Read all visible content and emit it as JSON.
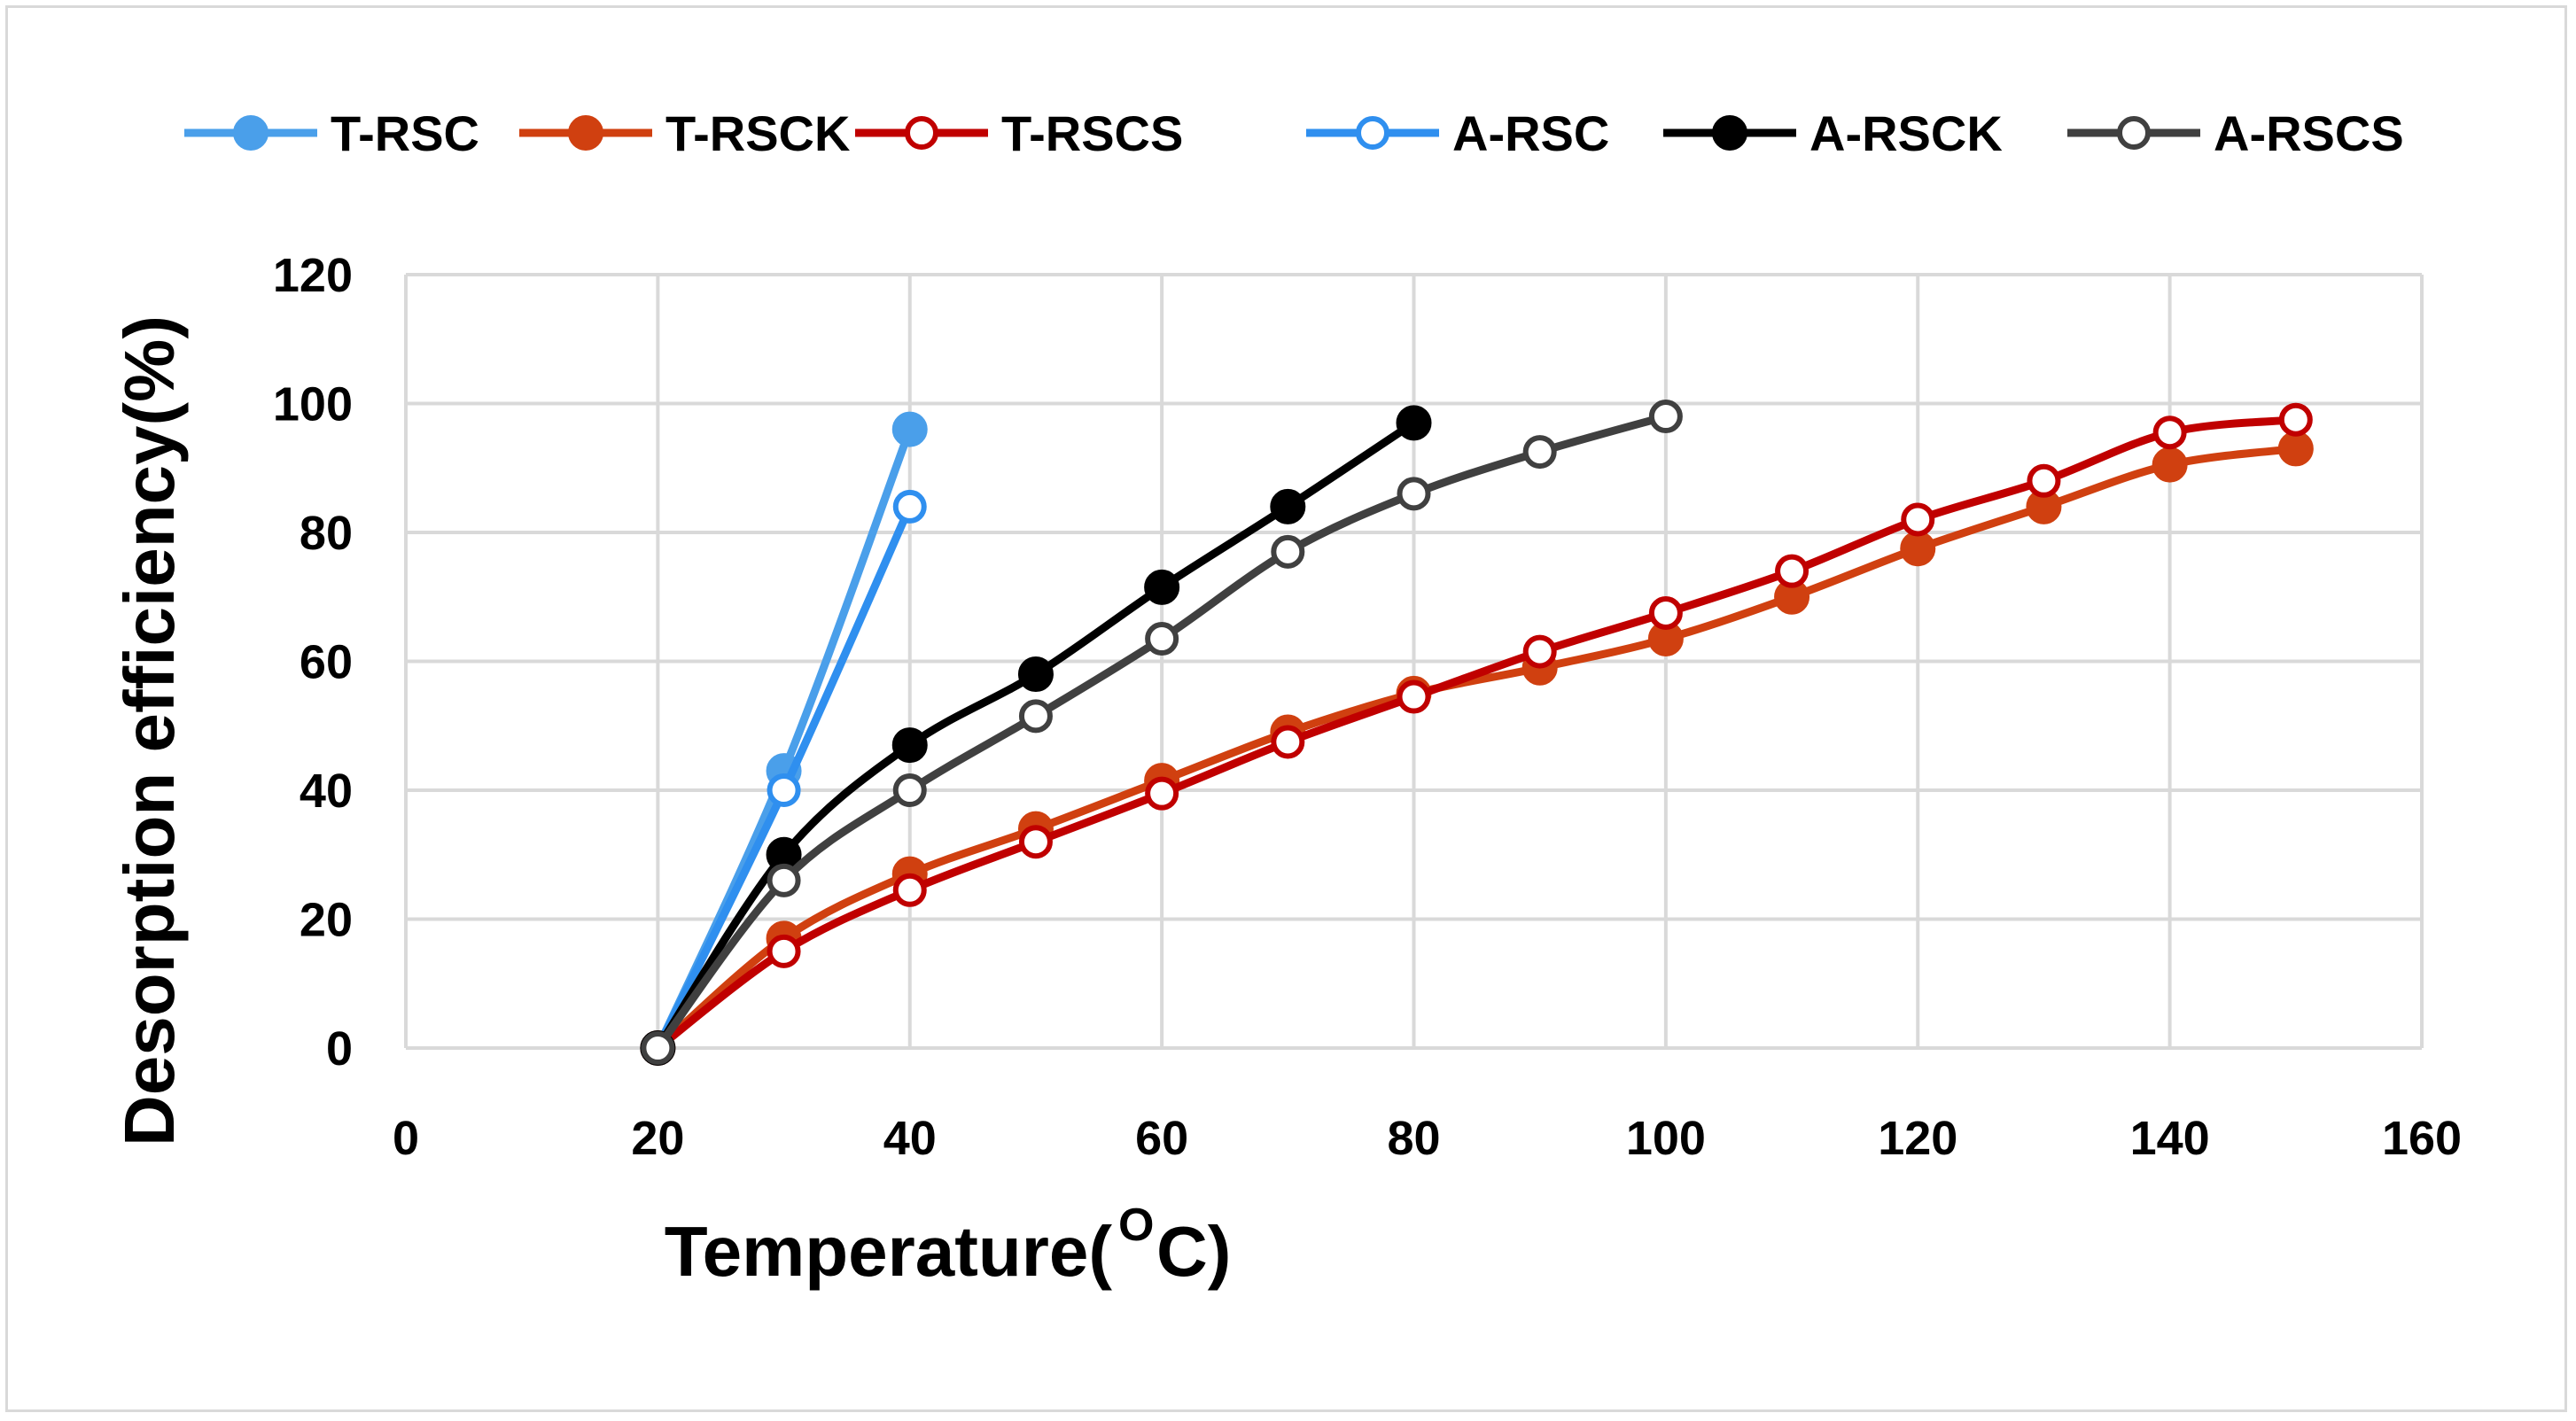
{
  "chart_data": {
    "type": "line",
    "title": "",
    "xlabel": "Temperature(",
    "xlabel_superscript": "O",
    "xlabel_suffix": "C)",
    "ylabel": "Desorption efficiency(%)",
    "xlim": [
      0,
      160
    ],
    "ylim": [
      0,
      120
    ],
    "xticks": [
      0,
      20,
      40,
      60,
      80,
      100,
      120,
      140,
      160
    ],
    "yticks": [
      0,
      20,
      40,
      60,
      80,
      100,
      120
    ],
    "grid": true,
    "legend_position": "top",
    "series": [
      {
        "name": "T-RSC",
        "color": "#4a9fea",
        "marker": "filled",
        "x": [
          20,
          30,
          40
        ],
        "y": [
          0,
          43,
          96
        ]
      },
      {
        "name": "T-RSCK",
        "color": "#d04010",
        "marker": "filled",
        "x": [
          20,
          30,
          40,
          50,
          60,
          70,
          80,
          90,
          100,
          110,
          120,
          130,
          140,
          150
        ],
        "y": [
          0,
          17,
          27,
          34,
          41.5,
          49,
          55,
          59,
          63.5,
          70,
          77.5,
          84,
          90.5,
          93
        ]
      },
      {
        "name": "T-RSCS",
        "color": "#c00000",
        "marker": "open",
        "x": [
          20,
          30,
          40,
          50,
          60,
          70,
          80,
          90,
          100,
          110,
          120,
          130,
          140,
          150
        ],
        "y": [
          0,
          15,
          24.5,
          32,
          39.5,
          47.5,
          54.5,
          61.5,
          67.5,
          74,
          82,
          88,
          95.5,
          97.5
        ]
      },
      {
        "name": "A-RSC",
        "color": "#2f8fef",
        "marker": "open",
        "x": [
          20,
          30,
          40
        ],
        "y": [
          0,
          40,
          84
        ]
      },
      {
        "name": "A-RSCK",
        "color": "#000000",
        "marker": "filled",
        "x": [
          20,
          30,
          40,
          50,
          60,
          70,
          80
        ],
        "y": [
          0,
          30,
          47,
          58,
          71.5,
          84,
          97
        ]
      },
      {
        "name": "A-RSCS",
        "color": "#404040",
        "marker": "open",
        "x": [
          20,
          30,
          40,
          50,
          60,
          70,
          80,
          90,
          100
        ],
        "y": [
          0,
          26,
          40,
          51.5,
          63.5,
          77,
          86,
          92.5,
          98
        ]
      }
    ]
  }
}
